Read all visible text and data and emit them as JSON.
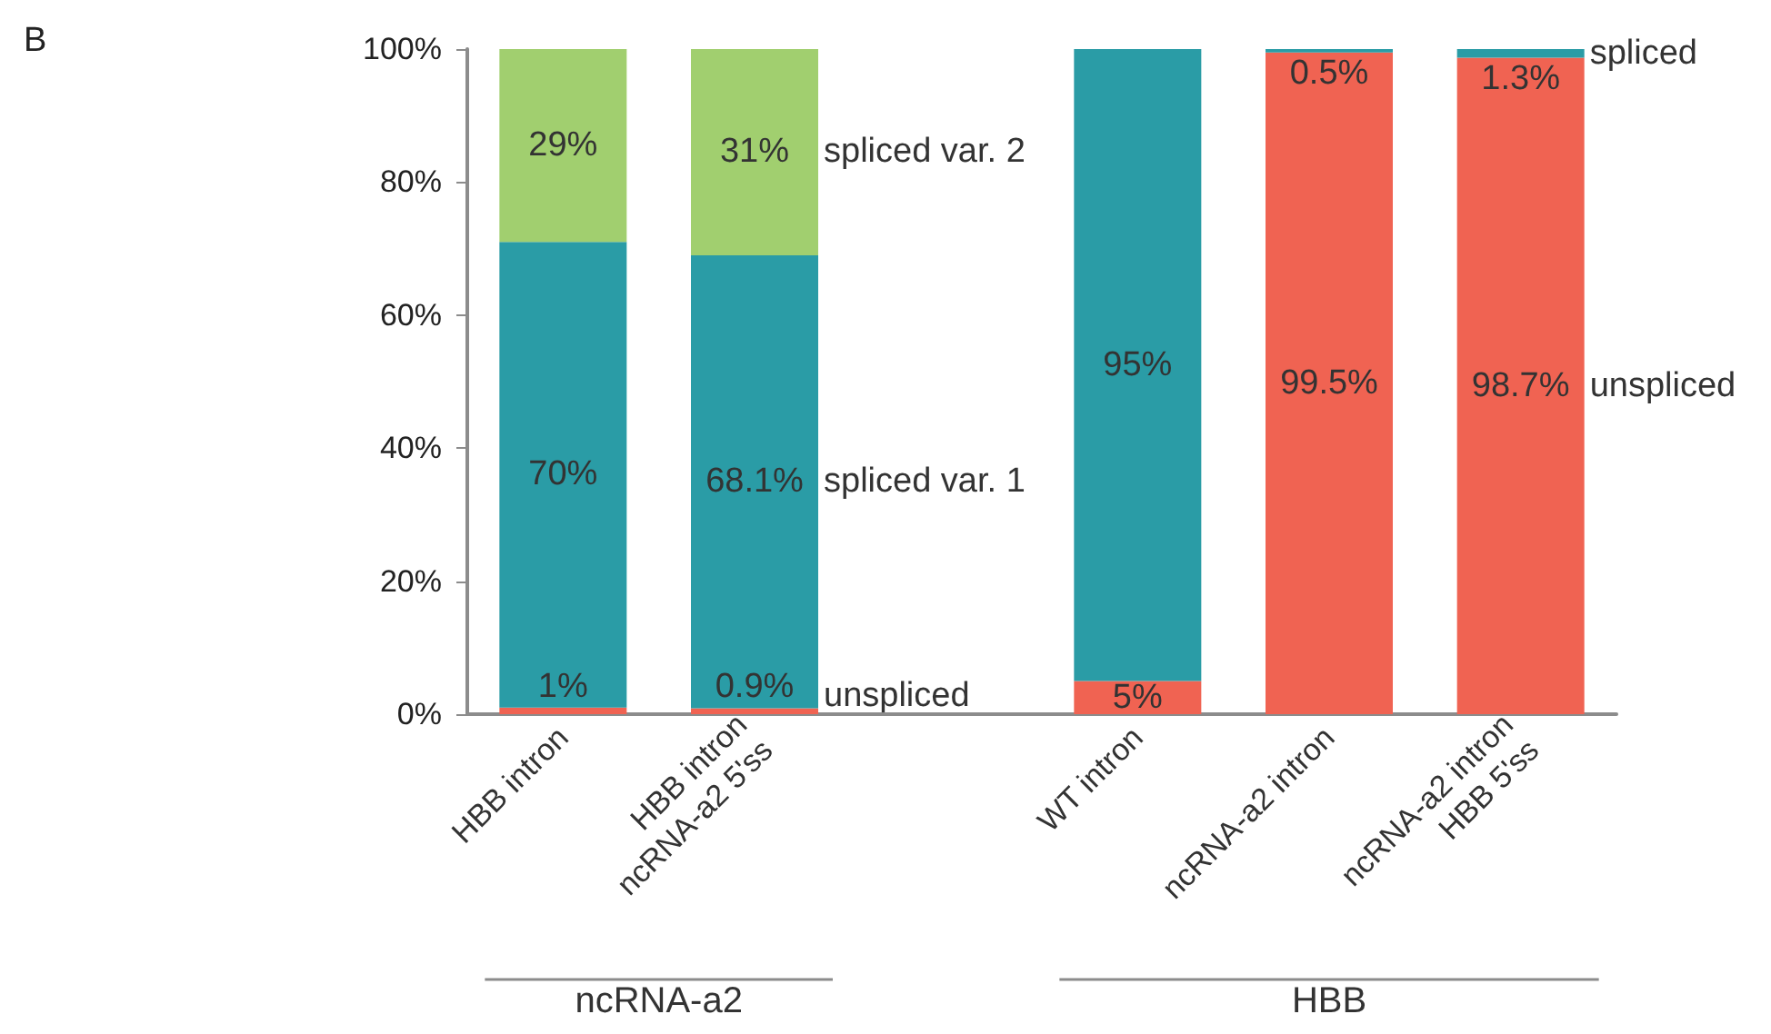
{
  "chart_data": {
    "type": "bar",
    "title": "B",
    "stacked": true,
    "categories": [
      "HBB intron",
      "HBB intron\nncRNA-a2 5'ss",
      null,
      "WT intron",
      "ncRNA-a2 intron",
      "ncRNA-a2 intron\nHBB 5'ss"
    ],
    "series": [
      {
        "color": "#f06352",
        "values": [
          1,
          0.9,
          null,
          5,
          99.5,
          98.7
        ],
        "value_labels": [
          "1%",
          "0.9%",
          null,
          "5%",
          "99.5%",
          "98.7%"
        ]
      },
      {
        "color": "#2a9ca6",
        "values": [
          70,
          68.1,
          null,
          null,
          null,
          null
        ],
        "value_labels": [
          "70%",
          "68.1%",
          null,
          null,
          null,
          null
        ]
      },
      {
        "color": "#a1cf6f",
        "values": [
          29,
          31,
          null,
          null,
          null,
          null
        ],
        "value_labels": [
          "29%",
          "31%",
          null,
          null,
          null,
          null
        ]
      },
      {
        "color": "#2a9ca6",
        "values": [
          null,
          null,
          null,
          95,
          0.5,
          1.3
        ],
        "value_labels": [
          null,
          null,
          null,
          "95%",
          "0.5%",
          "1.3%"
        ]
      }
    ],
    "ylim": [
      0,
      100
    ],
    "yticks": [
      {
        "value": 0,
        "label": "0%"
      },
      {
        "value": 20,
        "label": "20%"
      },
      {
        "value": 40,
        "label": "40%"
      },
      {
        "value": 60,
        "label": "60%"
      },
      {
        "value": 80,
        "label": "80%"
      },
      {
        "value": 100,
        "label": "100%"
      }
    ],
    "grid": false,
    "annotations": [
      "spliced var. 2",
      "spliced var. 1",
      "unspliced",
      "spliced",
      "unspliced",
      "ncRNA-a2",
      "HBB"
    ]
  }
}
